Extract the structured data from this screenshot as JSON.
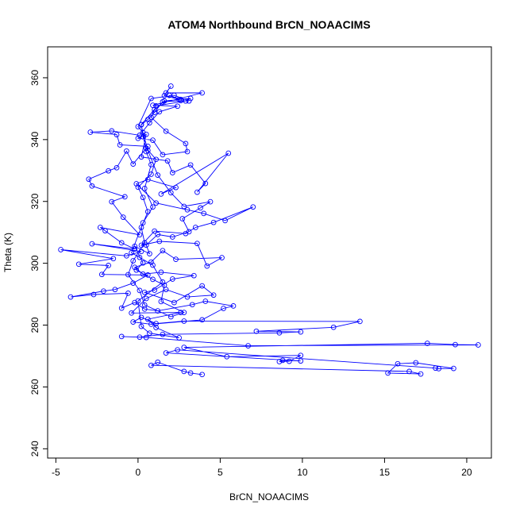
{
  "chart_data": {
    "type": "scatter",
    "title": "ATOM4 Northbound BrCN_NOAACIMS",
    "xlabel": "BrCN_NOAACIMS",
    "ylabel": "Theta (K)",
    "xlim": [
      -5.5,
      21.5
    ],
    "ylim": [
      237,
      370
    ],
    "xticks": [
      -5,
      0,
      5,
      10,
      15,
      20
    ],
    "yticks": [
      240,
      260,
      280,
      300,
      320,
      340,
      360
    ],
    "grid": false,
    "legend": "none",
    "series": [
      {
        "color": "#0000ff",
        "mode": "lines+markers",
        "points": [
          [
            3.9,
            264
          ],
          [
            3.2,
            264.5
          ],
          [
            2.8,
            265
          ],
          [
            1.2,
            268
          ],
          [
            0.8,
            267
          ],
          [
            16.5,
            265
          ],
          [
            17.2,
            264.2
          ],
          [
            15.2,
            264.5
          ],
          [
            15.8,
            267.5
          ],
          [
            16.9,
            267.8
          ],
          [
            19.2,
            266
          ],
          [
            18.3,
            265.9
          ],
          [
            18.1,
            266.1
          ],
          [
            2.4,
            272
          ],
          [
            1.7,
            271
          ],
          [
            9.9,
            268.4
          ],
          [
            8.8,
            268.6
          ],
          [
            8.6,
            268.2
          ],
          [
            9.2,
            268.3
          ],
          [
            9.9,
            270.2
          ],
          [
            5.4,
            269.8
          ],
          [
            2.8,
            272.8
          ],
          [
            17.6,
            274.1
          ],
          [
            19.3,
            273.7
          ],
          [
            20.7,
            273.6
          ],
          [
            6.7,
            273.3
          ],
          [
            0.5,
            276
          ],
          [
            -1.0,
            276.3
          ],
          [
            0.1,
            276.1
          ],
          [
            1.5,
            277
          ],
          [
            8.6,
            277.5
          ],
          [
            9.9,
            277.8
          ],
          [
            7.2,
            278
          ],
          [
            11.9,
            279.3
          ],
          [
            13.5,
            281.2
          ],
          [
            2.8,
            281.3
          ],
          [
            1.1,
            280.5
          ],
          [
            0.2,
            282.5
          ],
          [
            -0.3,
            281
          ],
          [
            0.8,
            280.3
          ],
          [
            3.9,
            281.7
          ],
          [
            5.2,
            285.4
          ],
          [
            5.8,
            286.2
          ],
          [
            4.1,
            287.7
          ],
          [
            3.3,
            286.6
          ],
          [
            1.2,
            284.6
          ],
          [
            0.4,
            285.2
          ],
          [
            -0.2,
            287.3
          ],
          [
            -1.0,
            285.5
          ],
          [
            -0.6,
            290.3
          ],
          [
            -2.7,
            289.9
          ],
          [
            -4.1,
            289.1
          ],
          [
            -2.1,
            291
          ],
          [
            -1.4,
            291.5
          ],
          [
            -0.3,
            293.6
          ],
          [
            0.6,
            296.2
          ],
          [
            -2.2,
            296.4
          ],
          [
            -1.8,
            299.3
          ],
          [
            -3.6,
            299.7
          ],
          [
            -1.5,
            301.5
          ],
          [
            -4.7,
            304.4
          ],
          [
            -0.7,
            302.4
          ],
          [
            0.2,
            303.8
          ],
          [
            -2.8,
            306.3
          ],
          [
            -0.2,
            304.6
          ],
          [
            -1.0,
            306.6
          ],
          [
            -2.0,
            310.5
          ],
          [
            -2.3,
            311.6
          ],
          [
            0.1,
            309.2
          ],
          [
            -0.9,
            314.9
          ],
          [
            -1.6,
            319.9
          ],
          [
            -0.8,
            321.5
          ],
          [
            -2.8,
            325
          ],
          [
            -3.0,
            327.2
          ],
          [
            -1.8,
            329.9
          ],
          [
            -1.3,
            330.9
          ],
          [
            -0.7,
            336.3
          ],
          [
            -0.3,
            332.1
          ],
          [
            0.6,
            337.8
          ],
          [
            -1.1,
            338.3
          ],
          [
            -1.3,
            341.6
          ],
          [
            -2.9,
            342.4
          ],
          [
            -1.6,
            342.8
          ],
          [
            0.1,
            341.4
          ],
          [
            0.7,
            345.4
          ],
          [
            1.3,
            349
          ],
          [
            2.4,
            350.8
          ],
          [
            0.9,
            351.1
          ],
          [
            3.9,
            355.1
          ],
          [
            1.7,
            355.1
          ],
          [
            2.0,
            357.3
          ],
          [
            1.6,
            354.2
          ],
          [
            2.5,
            353
          ],
          [
            3.2,
            353.3
          ],
          [
            2.9,
            352.5
          ],
          [
            1.1,
            350.9
          ],
          [
            0.8,
            347.2
          ],
          [
            1.7,
            342.7
          ],
          [
            2.9,
            338.7
          ],
          [
            3.0,
            336.1
          ],
          [
            1.5,
            335.1
          ],
          [
            0.9,
            339.8
          ],
          [
            0.0,
            340.4
          ],
          [
            0.5,
            341.7
          ],
          [
            0.2,
            334.4
          ],
          [
            1.8,
            333.1
          ],
          [
            2.1,
            329.3
          ],
          [
            3.2,
            331.8
          ],
          [
            4.1,
            325.8
          ],
          [
            3.6,
            323
          ],
          [
            5.5,
            335.6
          ],
          [
            1.4,
            322.4
          ],
          [
            2.3,
            324.5
          ],
          [
            0.6,
            327.1
          ],
          [
            -0.1,
            325.7
          ],
          [
            1.1,
            319.5
          ],
          [
            3.0,
            317.3
          ],
          [
            4.0,
            316.1
          ],
          [
            5.3,
            313.8
          ],
          [
            7.0,
            318.2
          ],
          [
            4.6,
            313.2
          ],
          [
            3.5,
            311.6
          ],
          [
            2.9,
            309.6
          ],
          [
            1.0,
            310.4
          ],
          [
            0.2,
            305.8
          ],
          [
            1.3,
            307.1
          ],
          [
            3.6,
            306.4
          ],
          [
            4.2,
            299.1
          ],
          [
            5.1,
            301.8
          ],
          [
            2.3,
            301.3
          ],
          [
            1.5,
            304.1
          ],
          [
            0.8,
            300.4
          ],
          [
            -0.2,
            298.7
          ],
          [
            0.3,
            296.5
          ],
          [
            1.4,
            297.1
          ],
          [
            3.4,
            296
          ],
          [
            2.1,
            294.9
          ],
          [
            1.0,
            291.3
          ],
          [
            0.4,
            290.6
          ],
          [
            2.2,
            287.3
          ],
          [
            3.9,
            292.7
          ],
          [
            4.6,
            289.7
          ],
          [
            3.0,
            289.1
          ],
          [
            1.7,
            291.5
          ],
          [
            0.5,
            288.6
          ],
          [
            -0.4,
            283.9
          ],
          [
            2.6,
            284.1
          ],
          [
            0.6,
            281.9
          ],
          [
            1.1,
            279.2
          ],
          [
            2.5,
            275.9
          ],
          [
            0.7,
            277.4
          ],
          [
            0.2,
            279.6
          ],
          [
            0.0,
            287.8
          ],
          [
            1.5,
            293.9
          ],
          [
            0.9,
            299.4
          ],
          [
            0.1,
            301.9
          ],
          [
            -0.4,
            303.4
          ],
          [
            0.3,
            313.1
          ],
          [
            0.9,
            318.2
          ],
          [
            0.4,
            324.2
          ],
          [
            0.8,
            331.9
          ],
          [
            0.5,
            336.1
          ],
          [
            0.2,
            344.8
          ],
          [
            0.6,
            346.5
          ],
          [
            1.0,
            348.8
          ],
          [
            1.5,
            352.2
          ],
          [
            2.6,
            352.6
          ],
          [
            3.1,
            352.5
          ],
          [
            2.2,
            354.3
          ],
          [
            0.8,
            353.3
          ],
          [
            0.0,
            344.2
          ],
          [
            0.3,
            342.3
          ],
          [
            0.6,
            336.5
          ],
          [
            1.2,
            328.5
          ],
          [
            2.0,
            322.8
          ],
          [
            2.8,
            318.4
          ],
          [
            4.4,
            319.9
          ],
          [
            3.8,
            317.9
          ],
          [
            2.7,
            314.4
          ],
          [
            3.1,
            310.2
          ],
          [
            2.1,
            308.5
          ],
          [
            1.2,
            309.3
          ],
          [
            0.5,
            305.9
          ],
          [
            0.7,
            303.1
          ],
          [
            -0.2,
            305.5
          ],
          [
            0.3,
            300.1
          ],
          [
            -0.1,
            297.8
          ],
          [
            0.9,
            294.8
          ],
          [
            1.6,
            292.9
          ],
          [
            1.4,
            287.6
          ],
          [
            2.8,
            284.1
          ],
          [
            2.0,
            282.7
          ],
          [
            0.4,
            286.5
          ],
          [
            0.1,
            291.2
          ],
          [
            -0.6,
            296.3
          ],
          [
            -0.3,
            300.8
          ],
          [
            0.4,
            306.6
          ],
          [
            0.2,
            311.6
          ],
          [
            0.6,
            316.7
          ],
          [
            0.3,
            321.3
          ],
          [
            0.0,
            324.6
          ],
          [
            0.8,
            328.8
          ],
          [
            1.1,
            333.6
          ],
          [
            0.5,
            337.2
          ],
          [
            0.3,
            340.9
          ],
          [
            0.2,
            344.9
          ],
          [
            1.0,
            349.7
          ],
          [
            1.6,
            352.5
          ],
          [
            2.6,
            353
          ],
          [
            1.9,
            354.3
          ]
        ]
      }
    ]
  }
}
